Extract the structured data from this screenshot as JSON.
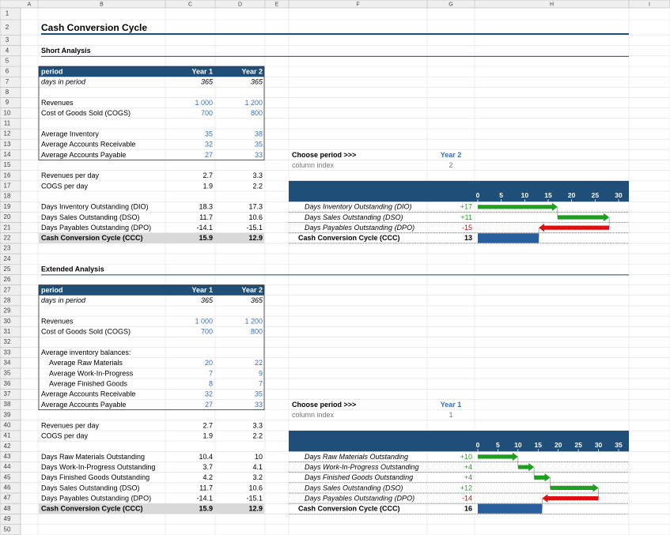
{
  "column_headers": [
    "A",
    "B",
    "C",
    "D",
    "E",
    "F",
    "G",
    "H",
    "I"
  ],
  "row_numbers": [
    1,
    2,
    3,
    4,
    5,
    6,
    7,
    8,
    9,
    10,
    11,
    12,
    13,
    14,
    15,
    16,
    17,
    18,
    19,
    20,
    21,
    22,
    23,
    24,
    25,
    26,
    27,
    28,
    29,
    30,
    31,
    32,
    33,
    34,
    35,
    36,
    37,
    38,
    39,
    40,
    41,
    42,
    43,
    44,
    45,
    46,
    47,
    48,
    49,
    50
  ],
  "title": "Cash Conversion Cycle",
  "short": {
    "heading": "Short Analysis",
    "header": [
      "period",
      "Year 1",
      "Year 2"
    ],
    "days": [
      "days in period",
      365,
      365
    ],
    "rows": [
      [
        "Revenues",
        "1 000",
        "1 200"
      ],
      [
        "Cost of Goods Sold (COGS)",
        700,
        800
      ],
      [
        "Average Inventory",
        35,
        38
      ],
      [
        "Average Accounts Receivable",
        32,
        35
      ],
      [
        "Average Accounts Payable",
        27,
        33
      ],
      [
        "Revenues per day",
        2.7,
        3.3
      ],
      [
        "COGS per day",
        1.9,
        2.2
      ],
      [
        "Days Inventory Outstanding (DIO)",
        18.3,
        17.3
      ],
      [
        "Days Sales Outstanding (DSO)",
        11.7,
        10.6
      ],
      [
        "Days Payables Outstanding (DPO)",
        -14.1,
        -15.1
      ]
    ],
    "ccc": [
      "Cash Conversion Cycle (CCC)",
      15.9,
      12.9
    ],
    "chooser": {
      "label": "Choose period >>>",
      "period": "Year 2",
      "index_label": "column index",
      "index": 2
    },
    "waterfall": {
      "labels": [
        "Days Inventory Outstanding (DIO)",
        "Days Sales Outstanding (DSO)",
        "Days Payables Outstanding (DPO)"
      ],
      "values": [
        17,
        11,
        -15
      ],
      "value_labels": [
        "+17",
        "+11",
        "-15"
      ],
      "total_label": "Cash Conversion Cycle (CCC)",
      "total": 13,
      "xlim": [
        0,
        30
      ],
      "xticks": [
        0,
        5,
        10,
        15,
        20,
        25,
        30
      ]
    }
  },
  "extended": {
    "heading": "Extended Analysis",
    "header": [
      "period",
      "Year 1",
      "Year 2"
    ],
    "days": [
      "days in period",
      365,
      365
    ],
    "inventory_note": "Average inventory balances:",
    "rows": [
      [
        "Revenues",
        "1 000",
        "1 200"
      ],
      [
        "Cost of Goods Sold (COGS)",
        700,
        800
      ],
      [
        "Average Raw Materials",
        20,
        22
      ],
      [
        "Average Work-In-Progress",
        7,
        9
      ],
      [
        "Average Finished Goods",
        8,
        7
      ],
      [
        "Average Accounts Receivable",
        32,
        35
      ],
      [
        "Average Accounts Payable",
        27,
        33
      ],
      [
        "Revenues per day",
        2.7,
        3.3
      ],
      [
        "COGS per day",
        1.9,
        2.2
      ],
      [
        "Days Raw Materials Outstanding",
        10.4,
        10.0
      ],
      [
        "Days Work-In-Progress Outstanding",
        3.7,
        4.1
      ],
      [
        "Days Finished Goods Outstanding",
        4.2,
        3.2
      ],
      [
        "Days Sales Outstanding (DSO)",
        11.7,
        10.6
      ],
      [
        "Days Payables Outstanding (DPO)",
        -14.1,
        -15.1
      ]
    ],
    "ccc": [
      "Cash Conversion Cycle (CCC)",
      15.9,
      12.9
    ],
    "chooser": {
      "label": "Choose period >>>",
      "period": "Year 1",
      "index_label": "column index",
      "index": 1
    },
    "waterfall": {
      "labels": [
        "Days Raw Materials Outstanding",
        "Days Work-In-Progress Outstanding",
        "Days Finished Goods Outstanding",
        "Days Sales Outstanding (DSO)",
        "Days Payables Outstanding (DPO)"
      ],
      "values": [
        10,
        4,
        4,
        12,
        -14
      ],
      "value_labels": [
        "+10",
        "+4",
        "+4",
        "+12",
        "-14"
      ],
      "total_label": "Cash Conversion Cycle (CCC)",
      "total": 16,
      "xlim": [
        0,
        35
      ],
      "xticks": [
        0,
        5,
        10,
        15,
        20,
        25,
        30,
        35
      ]
    }
  }
}
